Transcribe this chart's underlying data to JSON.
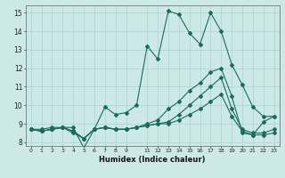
{
  "xlabel": "Humidex (Indice chaleur)",
  "xlim": [
    -0.5,
    23.5
  ],
  "ylim": [
    7.8,
    15.4
  ],
  "yticks": [
    8,
    9,
    10,
    11,
    12,
    13,
    14,
    15
  ],
  "bg_color": "#cce9e7",
  "line_color": "#1a6b5e",
  "grid_color": "#a8d4d0",
  "lines": [
    [
      8.7,
      8.7,
      8.8,
      8.8,
      8.8,
      7.7,
      8.7,
      9.9,
      9.5,
      9.6,
      10.0,
      13.2,
      12.5,
      15.1,
      14.9,
      13.9,
      13.3,
      15.0,
      14.0,
      12.2,
      11.1,
      9.9,
      9.4,
      9.4
    ],
    [
      8.7,
      8.6,
      8.7,
      8.8,
      8.6,
      8.2,
      8.7,
      8.8,
      8.7,
      8.7,
      8.8,
      8.9,
      9.0,
      9.1,
      9.5,
      10.0,
      10.5,
      11.0,
      11.5,
      9.8,
      8.7,
      8.5,
      8.5,
      8.7
    ],
    [
      8.7,
      8.6,
      8.7,
      8.8,
      8.6,
      8.2,
      8.7,
      8.8,
      8.7,
      8.7,
      8.8,
      8.9,
      9.0,
      9.0,
      9.2,
      9.5,
      9.8,
      10.2,
      10.6,
      9.4,
      8.6,
      8.4,
      8.4,
      8.5
    ],
    [
      8.7,
      8.6,
      8.7,
      8.8,
      8.5,
      8.2,
      8.7,
      8.8,
      8.7,
      8.7,
      8.8,
      9.0,
      9.2,
      9.8,
      10.2,
      10.8,
      11.2,
      11.8,
      12.0,
      10.5,
      8.5,
      8.4,
      9.1,
      9.4
    ]
  ],
  "xtick_positions": [
    0,
    1,
    2,
    3,
    4,
    5,
    6,
    7,
    8,
    9,
    11,
    12,
    13,
    14,
    15,
    16,
    17,
    18,
    19,
    20,
    21,
    22,
    23
  ],
  "xtick_labels": [
    "0",
    "1",
    "2",
    "3",
    "4",
    "5",
    "6",
    "7",
    "8",
    "9",
    "11",
    "12",
    "13",
    "14",
    "15",
    "16",
    "17",
    "18",
    "19",
    "20",
    "21",
    "22",
    "23"
  ]
}
